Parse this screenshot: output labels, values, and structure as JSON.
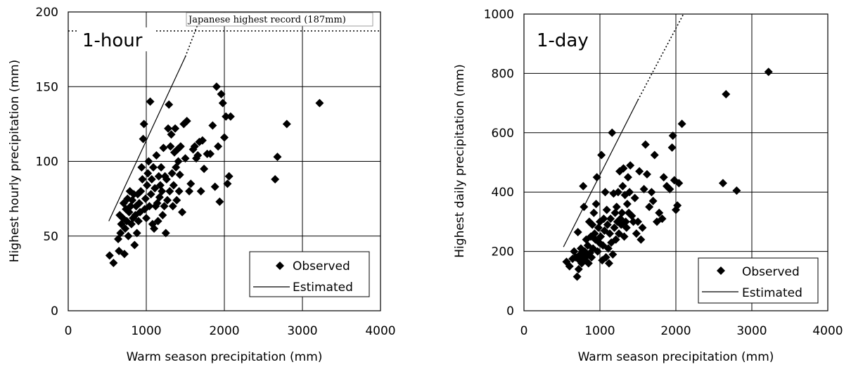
{
  "chart_data": [
    {
      "type": "scatter",
      "panel_label": "1-hour",
      "xlabel": "Warm season precipitation (mm)",
      "ylabel": "Highest hourly precipitation (mm)",
      "xlim": [
        0,
        4000
      ],
      "ylim": [
        0,
        200
      ],
      "xticks": [
        0,
        1000,
        2000,
        3000,
        4000
      ],
      "yticks": [
        0,
        50,
        100,
        150,
        200
      ],
      "grid": true,
      "legend_position": "bottom-right",
      "legend": {
        "observed": "Observed",
        "estimated": "Estimated"
      },
      "reference_line": {
        "label": "Japanese highest record (187mm)",
        "y": 187
      },
      "estimated_solid": [
        [
          520,
          60
        ],
        [
          1500,
          170
        ]
      ],
      "estimated_dotted": [
        [
          1500,
          170
        ],
        [
          1720,
          200
        ]
      ],
      "series": [
        {
          "name": "Observed",
          "points": [
            [
              530,
              37
            ],
            [
              580,
              32
            ],
            [
              640,
              48
            ],
            [
              650,
              40
            ],
            [
              660,
              64
            ],
            [
              670,
              52
            ],
            [
              680,
              58
            ],
            [
              700,
              62
            ],
            [
              710,
              72
            ],
            [
              720,
              38
            ],
            [
              730,
              55
            ],
            [
              740,
              68
            ],
            [
              750,
              60
            ],
            [
              760,
              75
            ],
            [
              770,
              50
            ],
            [
              780,
              66
            ],
            [
              790,
              80
            ],
            [
              800,
              70
            ],
            [
              810,
              58
            ],
            [
              820,
              74
            ],
            [
              830,
              62
            ],
            [
              840,
              78
            ],
            [
              850,
              44
            ],
            [
              860,
              64
            ],
            [
              870,
              70
            ],
            [
              880,
              52
            ],
            [
              890,
              78
            ],
            [
              900,
              60
            ],
            [
              910,
              72
            ],
            [
              920,
              66
            ],
            [
              930,
              80
            ],
            [
              940,
              96
            ],
            [
              950,
              88
            ],
            [
              960,
              115
            ],
            [
              970,
              125
            ],
            [
              980,
              68
            ],
            [
              990,
              75
            ],
            [
              1000,
              62
            ],
            [
              1010,
              84
            ],
            [
              1020,
              92
            ],
            [
              1030,
              100
            ],
            [
              1040,
              70
            ],
            [
              1050,
              140
            ],
            [
              1060,
              78
            ],
            [
              1070,
              88
            ],
            [
              1080,
              58
            ],
            [
              1090,
              96
            ],
            [
              1100,
              55
            ],
            [
              1110,
              82
            ],
            [
              1120,
              70
            ],
            [
              1130,
              104
            ],
            [
              1140,
              72
            ],
            [
              1150,
              60
            ],
            [
              1160,
              90
            ],
            [
              1170,
              76
            ],
            [
              1180,
              84
            ],
            [
              1190,
              96
            ],
            [
              1200,
              80
            ],
            [
              1210,
              64
            ],
            [
              1220,
              109
            ],
            [
              1230,
              70
            ],
            [
              1240,
              90
            ],
            [
              1250,
              52
            ],
            [
              1260,
              88
            ],
            [
              1270,
              74
            ],
            [
              1280,
              122
            ],
            [
              1290,
              138
            ],
            [
              1300,
              80
            ],
            [
              1310,
              110
            ],
            [
              1320,
              118
            ],
            [
              1330,
              92
            ],
            [
              1340,
              70
            ],
            [
              1350,
              84
            ],
            [
              1360,
              106
            ],
            [
              1370,
              122
            ],
            [
              1380,
              96
            ],
            [
              1390,
              74
            ],
            [
              1400,
              108
            ],
            [
              1410,
              100
            ],
            [
              1420,
              80
            ],
            [
              1430,
              91
            ],
            [
              1440,
              110
            ],
            [
              1460,
              66
            ],
            [
              1480,
              125
            ],
            [
              1500,
              102
            ],
            [
              1520,
              127
            ],
            [
              1550,
              80
            ],
            [
              1570,
              85
            ],
            [
              1600,
              108
            ],
            [
              1620,
              110
            ],
            [
              1640,
              102
            ],
            [
              1660,
              104
            ],
            [
              1680,
              113
            ],
            [
              1700,
              80
            ],
            [
              1720,
              114
            ],
            [
              1740,
              95
            ],
            [
              1780,
              105
            ],
            [
              1820,
              105
            ],
            [
              1850,
              124
            ],
            [
              1880,
              83
            ],
            [
              1900,
              150
            ],
            [
              1920,
              110
            ],
            [
              1940,
              73
            ],
            [
              1960,
              145
            ],
            [
              1980,
              139
            ],
            [
              2000,
              116
            ],
            [
              2020,
              130
            ],
            [
              2040,
              85
            ],
            [
              2060,
              90
            ],
            [
              2080,
              130
            ],
            [
              2650,
              88
            ],
            [
              2680,
              103
            ],
            [
              2800,
              125
            ],
            [
              3220,
              139
            ]
          ]
        }
      ]
    },
    {
      "type": "scatter",
      "panel_label": "1-day",
      "xlabel": "Warm season precipitation (mm)",
      "ylabel": "Highest daily precipitation (mm)",
      "xlim": [
        0,
        4000
      ],
      "ylim": [
        0,
        1000
      ],
      "xticks": [
        0,
        1000,
        2000,
        3000,
        4000
      ],
      "yticks": [
        0,
        200,
        400,
        600,
        800,
        1000
      ],
      "grid": true,
      "legend_position": "bottom-right",
      "legend": {
        "observed": "Observed",
        "estimated": "Estimated"
      },
      "estimated_solid": [
        [
          520,
          215
        ],
        [
          1500,
          710
        ]
      ],
      "estimated_dotted": [
        [
          1500,
          710
        ],
        [
          2100,
          1000
        ]
      ],
      "series": [
        {
          "name": "Observed",
          "points": [
            [
              560,
              165
            ],
            [
              600,
              150
            ],
            [
              640,
              175
            ],
            [
              660,
              200
            ],
            [
              680,
              180
            ],
            [
              700,
              115
            ],
            [
              710,
              265
            ],
            [
              720,
              140
            ],
            [
              730,
              170
            ],
            [
              740,
              190
            ],
            [
              750,
              210
            ],
            [
              760,
              160
            ],
            [
              770,
              180
            ],
            [
              780,
              420
            ],
            [
              790,
              350
            ],
            [
              800,
              200
            ],
            [
              810,
              170
            ],
            [
              820,
              240
            ],
            [
              830,
              185
            ],
            [
              840,
              220
            ],
            [
              850,
              160
            ],
            [
              860,
              300
            ],
            [
              870,
              195
            ],
            [
              880,
              250
            ],
            [
              890,
              180
            ],
            [
              900,
              290
            ],
            [
              910,
              210
            ],
            [
              920,
              330
            ],
            [
              930,
              260
            ],
            [
              940,
              240
            ],
            [
              950,
              360
            ],
            [
              960,
              450
            ],
            [
              970,
              200
            ],
            [
              980,
              280
            ],
            [
              990,
              230
            ],
            [
              1000,
              300
            ],
            [
              1010,
              250
            ],
            [
              1020,
              525
            ],
            [
              1030,
              170
            ],
            [
              1040,
              220
            ],
            [
              1050,
              310
            ],
            [
              1060,
              270
            ],
            [
              1070,
              400
            ],
            [
              1080,
              180
            ],
            [
              1090,
              340
            ],
            [
              1100,
              290
            ],
            [
              1110,
              210
            ],
            [
              1120,
              160
            ],
            [
              1130,
              260
            ],
            [
              1140,
              310
            ],
            [
              1150,
              230
            ],
            [
              1160,
              600
            ],
            [
              1170,
              190
            ],
            [
              1180,
              395
            ],
            [
              1190,
              280
            ],
            [
              1200,
              330
            ],
            [
              1210,
              240
            ],
            [
              1220,
              350
            ],
            [
              1230,
              300
            ],
            [
              1240,
              400
            ],
            [
              1250,
              260
            ],
            [
              1260,
              470
            ],
            [
              1270,
              310
            ],
            [
              1280,
              290
            ],
            [
              1290,
              330
            ],
            [
              1300,
              420
            ],
            [
              1310,
              480
            ],
            [
              1320,
              250
            ],
            [
              1330,
              390
            ],
            [
              1340,
              300
            ],
            [
              1350,
              280
            ],
            [
              1360,
              360
            ],
            [
              1370,
              450
            ],
            [
              1380,
              330
            ],
            [
              1390,
              400
            ],
            [
              1400,
              490
            ],
            [
              1420,
              320
            ],
            [
              1440,
              300
            ],
            [
              1460,
              380
            ],
            [
              1480,
              260
            ],
            [
              1500,
              300
            ],
            [
              1520,
              470
            ],
            [
              1540,
              240
            ],
            [
              1560,
              280
            ],
            [
              1580,
              410
            ],
            [
              1600,
              560
            ],
            [
              1620,
              460
            ],
            [
              1650,
              350
            ],
            [
              1680,
              400
            ],
            [
              1700,
              370
            ],
            [
              1720,
              525
            ],
            [
              1750,
              300
            ],
            [
              1780,
              330
            ],
            [
              1820,
              310
            ],
            [
              1840,
              450
            ],
            [
              1880,
              420
            ],
            [
              1920,
              410
            ],
            [
              1950,
              550
            ],
            [
              1960,
              590
            ],
            [
              1980,
              440
            ],
            [
              2000,
              340
            ],
            [
              2020,
              355
            ],
            [
              2040,
              430
            ],
            [
              2080,
              630
            ],
            [
              2620,
              430
            ],
            [
              2660,
              730
            ],
            [
              2800,
              405
            ],
            [
              3220,
              805
            ]
          ]
        }
      ]
    }
  ]
}
